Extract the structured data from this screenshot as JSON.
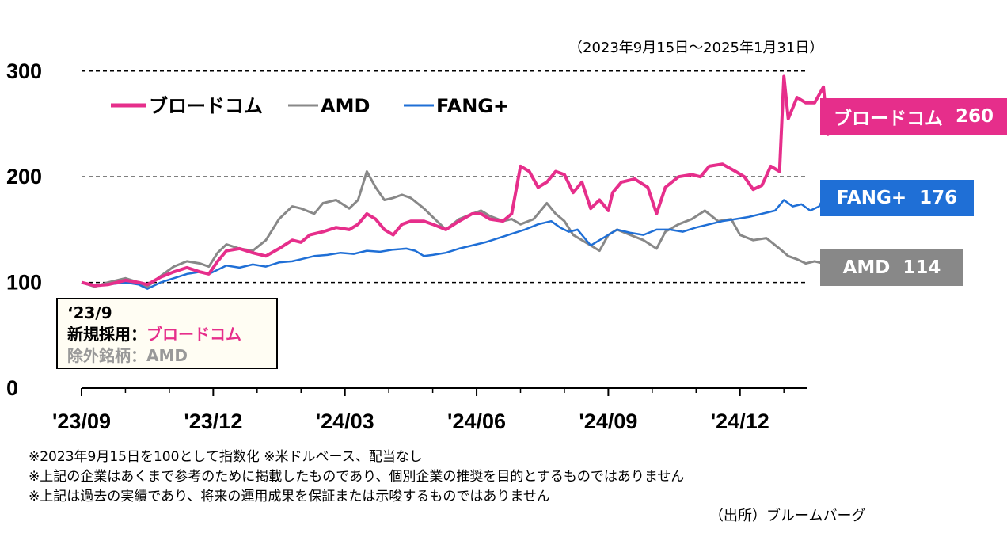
{
  "period": "（2023年9月15日～2025年1月31日）",
  "chart_data": {
    "type": "line",
    "title": "",
    "xlabel": "",
    "ylabel": "",
    "ylim": [
      0,
      300
    ],
    "yticks": [
      "300",
      "200",
      "100",
      "0"
    ],
    "ytick_values": [
      300,
      200,
      100,
      0
    ],
    "xticks": [
      "'23/09",
      "'23/12",
      "'24/03",
      "'24/06",
      "'24/09",
      "'24/12"
    ],
    "xtick_months": [
      0,
      3,
      6,
      9,
      12,
      15
    ],
    "x_range_months": [
      0,
      16.6
    ],
    "grid": "dashed horizontal at 100, 200, 300",
    "legend_placement": "top-left",
    "series": [
      {
        "name": "ブロードコム",
        "color": "#e62e8b",
        "end_label": "ブロードコム",
        "end_value": "260",
        "points": [
          [
            0,
            100
          ],
          [
            0.3,
            97
          ],
          [
            0.6,
            98
          ],
          [
            1.0,
            102
          ],
          [
            1.3,
            100
          ],
          [
            1.5,
            98
          ],
          [
            1.8,
            105
          ],
          [
            2.1,
            110
          ],
          [
            2.4,
            114
          ],
          [
            2.7,
            110
          ],
          [
            2.9,
            108
          ],
          [
            3.1,
            120
          ],
          [
            3.3,
            130
          ],
          [
            3.6,
            132
          ],
          [
            3.9,
            128
          ],
          [
            4.2,
            125
          ],
          [
            4.5,
            132
          ],
          [
            4.8,
            140
          ],
          [
            5.0,
            138
          ],
          [
            5.2,
            145
          ],
          [
            5.5,
            148
          ],
          [
            5.8,
            152
          ],
          [
            6.1,
            150
          ],
          [
            6.3,
            155
          ],
          [
            6.5,
            165
          ],
          [
            6.7,
            160
          ],
          [
            6.9,
            150
          ],
          [
            7.1,
            145
          ],
          [
            7.3,
            155
          ],
          [
            7.5,
            158
          ],
          [
            7.8,
            158
          ],
          [
            8.0,
            155
          ],
          [
            8.3,
            150
          ],
          [
            8.6,
            158
          ],
          [
            8.9,
            165
          ],
          [
            9.1,
            165
          ],
          [
            9.3,
            160
          ],
          [
            9.6,
            158
          ],
          [
            9.8,
            165
          ],
          [
            10.0,
            210
          ],
          [
            10.2,
            205
          ],
          [
            10.4,
            190
          ],
          [
            10.6,
            195
          ],
          [
            10.8,
            205
          ],
          [
            11.0,
            202
          ],
          [
            11.2,
            185
          ],
          [
            11.4,
            195
          ],
          [
            11.6,
            170
          ],
          [
            11.8,
            178
          ],
          [
            12.0,
            168
          ],
          [
            12.1,
            185
          ],
          [
            12.3,
            195
          ],
          [
            12.6,
            198
          ],
          [
            12.9,
            190
          ],
          [
            13.1,
            165
          ],
          [
            13.3,
            190
          ],
          [
            13.6,
            200
          ],
          [
            13.9,
            202
          ],
          [
            14.1,
            200
          ],
          [
            14.3,
            210
          ],
          [
            14.6,
            212
          ],
          [
            14.9,
            205
          ],
          [
            15.1,
            200
          ],
          [
            15.3,
            188
          ],
          [
            15.5,
            192
          ],
          [
            15.7,
            210
          ],
          [
            15.9,
            205
          ],
          [
            16.0,
            295
          ],
          [
            16.1,
            255
          ],
          [
            16.3,
            275
          ],
          [
            16.5,
            270
          ],
          [
            16.7,
            270
          ],
          [
            16.9,
            285
          ],
          [
            17.0,
            240
          ],
          [
            17.1,
            260
          ]
        ]
      },
      {
        "name": "AMD",
        "color": "#888888",
        "end_label": "AMD",
        "end_value": "114",
        "points": [
          [
            0,
            100
          ],
          [
            0.3,
            96
          ],
          [
            0.6,
            100
          ],
          [
            1.0,
            104
          ],
          [
            1.3,
            100
          ],
          [
            1.5,
            96
          ],
          [
            1.8,
            106
          ],
          [
            2.1,
            115
          ],
          [
            2.4,
            120
          ],
          [
            2.7,
            118
          ],
          [
            2.9,
            115
          ],
          [
            3.1,
            128
          ],
          [
            3.3,
            136
          ],
          [
            3.6,
            132
          ],
          [
            3.9,
            130
          ],
          [
            4.2,
            140
          ],
          [
            4.5,
            160
          ],
          [
            4.8,
            172
          ],
          [
            5.0,
            170
          ],
          [
            5.3,
            165
          ],
          [
            5.5,
            175
          ],
          [
            5.8,
            178
          ],
          [
            6.1,
            170
          ],
          [
            6.3,
            178
          ],
          [
            6.5,
            205
          ],
          [
            6.7,
            190
          ],
          [
            6.9,
            178
          ],
          [
            7.1,
            180
          ],
          [
            7.3,
            183
          ],
          [
            7.5,
            180
          ],
          [
            7.8,
            170
          ],
          [
            8.0,
            162
          ],
          [
            8.3,
            150
          ],
          [
            8.6,
            160
          ],
          [
            8.9,
            165
          ],
          [
            9.1,
            168
          ],
          [
            9.3,
            163
          ],
          [
            9.6,
            158
          ],
          [
            9.8,
            160
          ],
          [
            10.0,
            155
          ],
          [
            10.3,
            160
          ],
          [
            10.6,
            175
          ],
          [
            10.8,
            165
          ],
          [
            11.0,
            158
          ],
          [
            11.2,
            145
          ],
          [
            11.4,
            140
          ],
          [
            11.6,
            135
          ],
          [
            11.8,
            130
          ],
          [
            12.0,
            145
          ],
          [
            12.2,
            150
          ],
          [
            12.5,
            145
          ],
          [
            12.8,
            140
          ],
          [
            13.1,
            132
          ],
          [
            13.3,
            148
          ],
          [
            13.6,
            155
          ],
          [
            13.9,
            160
          ],
          [
            14.2,
            168
          ],
          [
            14.5,
            158
          ],
          [
            14.8,
            160
          ],
          [
            15.0,
            145
          ],
          [
            15.3,
            140
          ],
          [
            15.6,
            142
          ],
          [
            15.9,
            132
          ],
          [
            16.1,
            125
          ],
          [
            16.3,
            122
          ],
          [
            16.5,
            118
          ],
          [
            16.7,
            120
          ],
          [
            16.9,
            118
          ],
          [
            17.0,
            114
          ],
          [
            17.1,
            114
          ]
        ]
      },
      {
        "name": "FANG+",
        "color": "#1f6fd6",
        "end_label": "FANG+",
        "end_value": "176",
        "points": [
          [
            0,
            100
          ],
          [
            0.3,
            97
          ],
          [
            0.6,
            98
          ],
          [
            1.0,
            100
          ],
          [
            1.3,
            98
          ],
          [
            1.5,
            94
          ],
          [
            1.8,
            100
          ],
          [
            2.1,
            104
          ],
          [
            2.4,
            108
          ],
          [
            2.7,
            110
          ],
          [
            2.9,
            108
          ],
          [
            3.1,
            112
          ],
          [
            3.3,
            116
          ],
          [
            3.6,
            114
          ],
          [
            3.9,
            117
          ],
          [
            4.2,
            115
          ],
          [
            4.5,
            119
          ],
          [
            4.8,
            120
          ],
          [
            5.0,
            122
          ],
          [
            5.3,
            125
          ],
          [
            5.6,
            126
          ],
          [
            5.9,
            128
          ],
          [
            6.2,
            127
          ],
          [
            6.5,
            130
          ],
          [
            6.8,
            129
          ],
          [
            7.1,
            131
          ],
          [
            7.4,
            132
          ],
          [
            7.6,
            130
          ],
          [
            7.8,
            125
          ],
          [
            8.0,
            126
          ],
          [
            8.3,
            128
          ],
          [
            8.6,
            132
          ],
          [
            8.9,
            135
          ],
          [
            9.2,
            138
          ],
          [
            9.5,
            142
          ],
          [
            9.8,
            146
          ],
          [
            10.1,
            150
          ],
          [
            10.4,
            155
          ],
          [
            10.7,
            158
          ],
          [
            10.9,
            152
          ],
          [
            11.1,
            148
          ],
          [
            11.3,
            150
          ],
          [
            11.6,
            135
          ],
          [
            11.8,
            140
          ],
          [
            12.0,
            145
          ],
          [
            12.2,
            150
          ],
          [
            12.5,
            147
          ],
          [
            12.8,
            145
          ],
          [
            13.1,
            150
          ],
          [
            13.4,
            150
          ],
          [
            13.7,
            148
          ],
          [
            14.0,
            152
          ],
          [
            14.3,
            155
          ],
          [
            14.6,
            158
          ],
          [
            14.9,
            160
          ],
          [
            15.2,
            162
          ],
          [
            15.5,
            165
          ],
          [
            15.8,
            168
          ],
          [
            16.0,
            178
          ],
          [
            16.2,
            172
          ],
          [
            16.4,
            174
          ],
          [
            16.6,
            168
          ],
          [
            16.8,
            172
          ],
          [
            16.9,
            180
          ],
          [
            17.0,
            174
          ],
          [
            17.1,
            176
          ]
        ]
      }
    ]
  },
  "note_box": {
    "date": "‘23/9",
    "added_label": "新規採用：",
    "added_value": "ブロードコム",
    "removed_label": "除外銘柄：",
    "removed_value": "AMD"
  },
  "footnotes": [
    "※2023年9月15日を100として指数化 ※米ドルベース、配当なし",
    "※上記の企業はあくまで参考のために掲載したものであり、個別企業の推奨を目的とするものではありません",
    "※上記は過去の実績であり、将来の運用成果を保証または示唆するものではありません"
  ],
  "source": "（出所）ブルームバーグ"
}
